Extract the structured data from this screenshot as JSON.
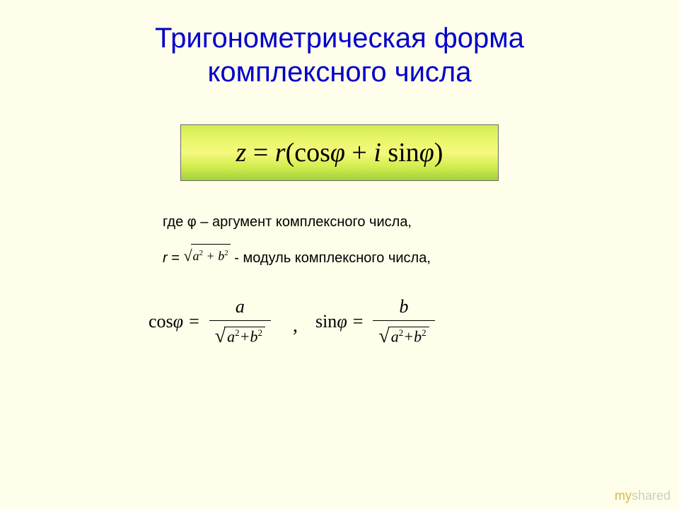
{
  "title": {
    "line1": "Тригонометрическая форма",
    "line2": "комплексного числа",
    "color": "#0000cc",
    "fontsize": 40
  },
  "main_formula": {
    "lhs_var": "z",
    "eq": "=",
    "r_var": "r",
    "lparen": "(",
    "cos": "cos",
    "phi1": "φ",
    "plus": "+",
    "i_var": "i",
    "sin": "sin",
    "phi2": "φ",
    "rparen": ")",
    "box_gradient_top": "#d3ed50",
    "box_gradient_bottom": "#a2d23a",
    "text_color": "#000000",
    "fontsize": 38
  },
  "explain": {
    "line1_pre": "где φ – аргумент комплексного числа,",
    "line2_pre": "r",
    "line2_eq": " = ",
    "sqrt_a": "a",
    "sqrt_plus": "+",
    "sqrt_b": "b",
    "sqrt_exp": "2",
    "line2_post": " - модуль комплексного числа,",
    "fontsize": 20
  },
  "trig": {
    "cos_label": "cos",
    "sin_label": "sin",
    "phi": "φ",
    "eq": "=",
    "num_a": "a",
    "num_b": "b",
    "den_a": "a",
    "den_plus": "+",
    "den_b": "b",
    "den_exp": "2",
    "comma": ",",
    "fontsize": 26
  },
  "watermark": {
    "part1": "my",
    "part2": "shared"
  },
  "colors": {
    "background": "#fefeea",
    "title": "#0000cc",
    "text": "#000000",
    "watermark_my": "#d6b84a",
    "watermark_rest": "#cfcfbf"
  }
}
